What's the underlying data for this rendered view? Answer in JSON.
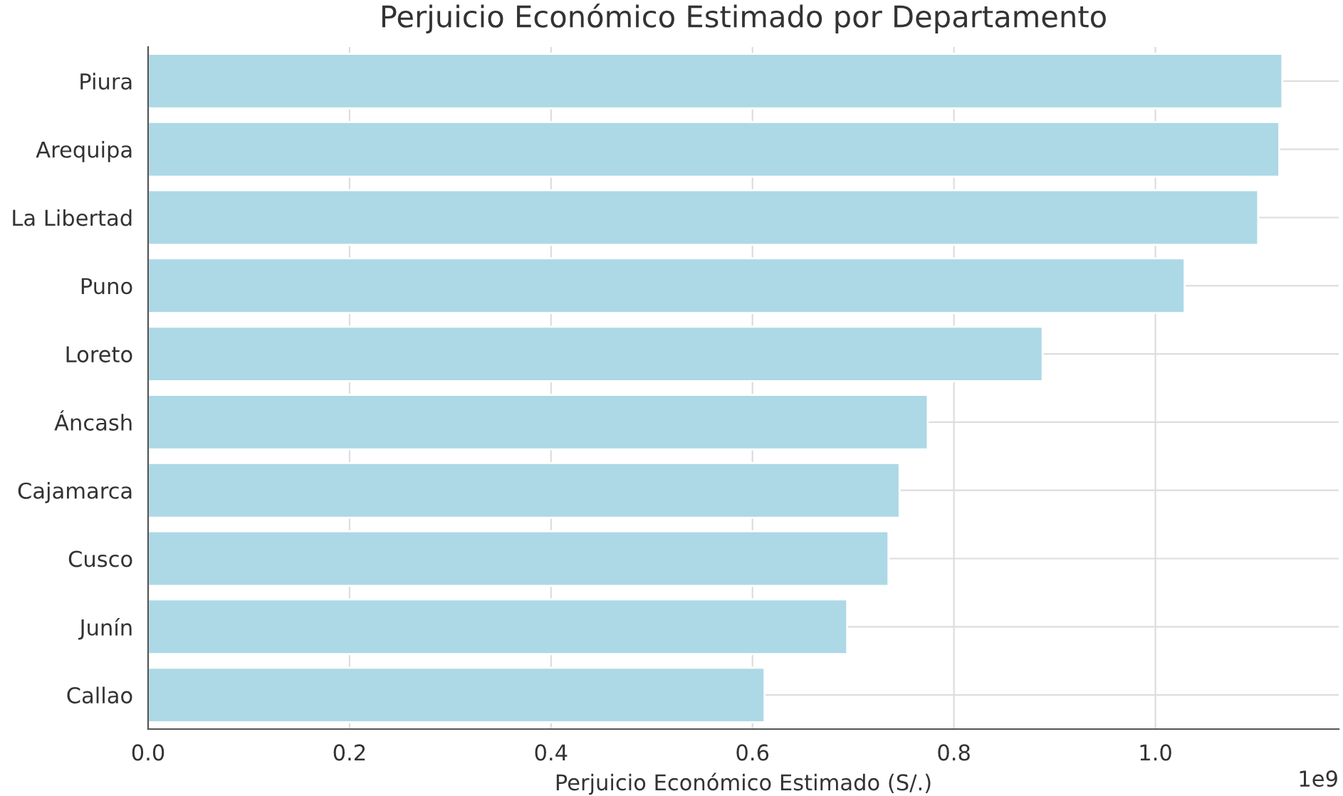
{
  "chart_data": {
    "type": "bar",
    "orientation": "horizontal",
    "title": "Perjuicio Económico Estimado por Departamento",
    "xlabel": "Perjuicio Económico Estimado (S/.)",
    "categories": [
      "Piura",
      "Arequipa",
      "La Libertad",
      "Puno",
      "Loreto",
      "Áncash",
      "Cajamarca",
      "Cusco",
      "Junín",
      "Callao"
    ],
    "values": [
      1.126,
      1.123,
      1.102,
      1.029,
      0.888,
      0.774,
      0.746,
      0.735,
      0.694,
      0.612
    ],
    "color": "#add8e6",
    "xlim": [
      0,
      1.182
    ],
    "xticks": [
      {
        "value": 0,
        "label": "0.0"
      },
      0.2,
      0.4,
      0.6,
      0.8,
      {
        "value": 1,
        "label": "1.0"
      }
    ],
    "annotations": [
      "1e9"
    ],
    "grid": true
  }
}
